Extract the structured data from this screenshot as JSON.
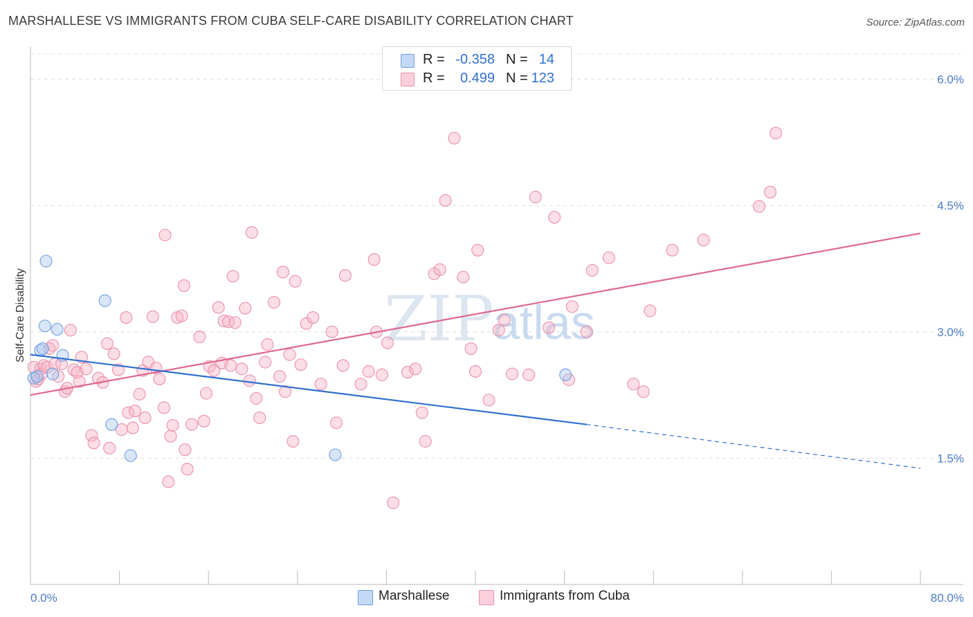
{
  "header": {
    "title": "MARSHALLESE VS IMMIGRANTS FROM CUBA SELF-CARE DISABILITY CORRELATION CHART",
    "source": "Source: ZipAtlas.com"
  },
  "watermark": {
    "zip": "ZIP",
    "atlas": "atlas"
  },
  "legend": {
    "rows": [
      {
        "r_label": "R =",
        "r_value": "-0.358",
        "n_label": "N =",
        "n_value": "14",
        "color": "#aac8f0"
      },
      {
        "r_label": "R =",
        "r_value": "0.499",
        "n_label": "N =",
        "n_value": "123",
        "color": "#f7b6c8"
      }
    ]
  },
  "bottom_legend": {
    "items": [
      {
        "label": "Marshallese",
        "color": "#aac8f0"
      },
      {
        "label": "Immigrants from Cuba",
        "color": "#f7b6c8"
      }
    ]
  },
  "chart_data": {
    "type": "scatter",
    "title": "MARSHALLESE VS IMMIGRANTS FROM CUBA SELF-CARE DISABILITY CORRELATION CHART",
    "xlabel": "",
    "ylabel": "Self-Care Disability",
    "xlim": [
      0,
      80
    ],
    "ylim": [
      0,
      6.3
    ],
    "x_tick_labels": [
      "0.0%",
      "80.0%"
    ],
    "y_ticks": [
      1.5,
      3.0,
      4.5,
      6.0
    ],
    "y_tick_labels": [
      "1.5%",
      "3.0%",
      "4.5%",
      "6.0%"
    ],
    "grid": true,
    "legend_position": "top-center",
    "series": [
      {
        "name": "Marshallese",
        "color": "#6f9fe0",
        "fill": "#aac8f0",
        "trend": {
          "x0": 0,
          "y0": 2.73,
          "x1": 50,
          "y1": 1.9,
          "dash_to_x": 80,
          "dash_to_y": 1.38,
          "color": "#2f6fd0"
        },
        "points": [
          [
            0.3,
            2.45
          ],
          [
            0.6,
            2.47
          ],
          [
            0.9,
            2.78
          ],
          [
            1.1,
            2.8
          ],
          [
            1.3,
            3.07
          ],
          [
            1.4,
            3.84
          ],
          [
            2.0,
            2.5
          ],
          [
            2.4,
            3.03
          ],
          [
            2.9,
            2.72
          ],
          [
            6.7,
            3.37
          ],
          [
            7.3,
            1.9
          ],
          [
            9.0,
            1.53
          ],
          [
            27.4,
            1.54
          ],
          [
            48.1,
            2.49
          ]
        ]
      },
      {
        "name": "Immigrants from Cuba",
        "color": "#e890aa",
        "fill": "#f7b6c8",
        "trend": {
          "x0": 0,
          "y0": 2.25,
          "x1": 80,
          "y1": 4.17,
          "color": "#e06690"
        },
        "points": [
          [
            0.3,
            2.58
          ],
          [
            0.5,
            2.41
          ],
          [
            0.7,
            2.44
          ],
          [
            0.9,
            2.56
          ],
          [
            1.0,
            2.5
          ],
          [
            1.2,
            2.6
          ],
          [
            1.5,
            2.58
          ],
          [
            1.7,
            2.8
          ],
          [
            2.0,
            2.84
          ],
          [
            2.2,
            2.62
          ],
          [
            2.5,
            2.47
          ],
          [
            2.8,
            2.62
          ],
          [
            3.1,
            2.29
          ],
          [
            3.3,
            2.33
          ],
          [
            3.6,
            3.02
          ],
          [
            3.9,
            2.55
          ],
          [
            4.2,
            2.52
          ],
          [
            4.4,
            2.41
          ],
          [
            4.6,
            2.7
          ],
          [
            5.0,
            2.56
          ],
          [
            5.5,
            1.77
          ],
          [
            5.7,
            1.68
          ],
          [
            6.1,
            2.45
          ],
          [
            6.5,
            2.4
          ],
          [
            6.9,
            2.86
          ],
          [
            7.1,
            1.62
          ],
          [
            7.5,
            2.74
          ],
          [
            7.9,
            2.55
          ],
          [
            8.2,
            1.84
          ],
          [
            8.6,
            3.17
          ],
          [
            8.8,
            2.04
          ],
          [
            9.2,
            1.86
          ],
          [
            9.4,
            2.06
          ],
          [
            9.8,
            2.26
          ],
          [
            10.1,
            2.54
          ],
          [
            10.3,
            1.98
          ],
          [
            10.6,
            2.64
          ],
          [
            11.0,
            3.18
          ],
          [
            11.3,
            2.57
          ],
          [
            11.6,
            2.44
          ],
          [
            12.0,
            2.1
          ],
          [
            12.1,
            4.15
          ],
          [
            12.4,
            1.22
          ],
          [
            12.6,
            1.76
          ],
          [
            12.8,
            1.89
          ],
          [
            13.2,
            3.17
          ],
          [
            13.6,
            3.19
          ],
          [
            13.8,
            3.55
          ],
          [
            13.9,
            1.6
          ],
          [
            14.1,
            1.37
          ],
          [
            14.5,
            1.9
          ],
          [
            15.2,
            2.94
          ],
          [
            15.6,
            1.94
          ],
          [
            15.8,
            2.27
          ],
          [
            16.1,
            2.59
          ],
          [
            16.5,
            2.54
          ],
          [
            16.9,
            3.29
          ],
          [
            17.2,
            2.63
          ],
          [
            17.4,
            3.13
          ],
          [
            17.8,
            3.12
          ],
          [
            18.0,
            2.6
          ],
          [
            18.2,
            3.66
          ],
          [
            18.4,
            3.11
          ],
          [
            19.0,
            2.56
          ],
          [
            19.3,
            3.28
          ],
          [
            19.7,
            2.42
          ],
          [
            19.9,
            4.18
          ],
          [
            20.3,
            2.21
          ],
          [
            20.6,
            1.98
          ],
          [
            21.1,
            2.64
          ],
          [
            21.3,
            2.85
          ],
          [
            21.9,
            3.35
          ],
          [
            22.4,
            2.47
          ],
          [
            22.7,
            3.71
          ],
          [
            22.9,
            2.29
          ],
          [
            23.3,
            2.73
          ],
          [
            23.6,
            1.7
          ],
          [
            23.8,
            3.6
          ],
          [
            24.3,
            2.61
          ],
          [
            24.8,
            3.1
          ],
          [
            25.4,
            3.17
          ],
          [
            26.1,
            2.38
          ],
          [
            27.1,
            3.0
          ],
          [
            27.5,
            1.92
          ],
          [
            28.1,
            2.6
          ],
          [
            28.3,
            3.67
          ],
          [
            29.7,
            2.38
          ],
          [
            30.4,
            2.53
          ],
          [
            30.9,
            3.86
          ],
          [
            31.1,
            3.0
          ],
          [
            31.6,
            2.49
          ],
          [
            32.1,
            2.87
          ],
          [
            32.6,
            0.97
          ],
          [
            33.9,
            2.52
          ],
          [
            34.6,
            2.56
          ],
          [
            35.2,
            2.04
          ],
          [
            35.5,
            1.7
          ],
          [
            36.3,
            3.69
          ],
          [
            36.8,
            3.74
          ],
          [
            37.3,
            4.56
          ],
          [
            38.1,
            5.3
          ],
          [
            38.9,
            3.65
          ],
          [
            39.6,
            2.8
          ],
          [
            40.0,
            2.53
          ],
          [
            40.2,
            3.97
          ],
          [
            41.2,
            2.19
          ],
          [
            42.1,
            3.02
          ],
          [
            42.6,
            3.14
          ],
          [
            43.3,
            2.5
          ],
          [
            44.8,
            2.49
          ],
          [
            45.4,
            4.6
          ],
          [
            46.6,
            3.05
          ],
          [
            47.1,
            4.36
          ],
          [
            48.4,
            2.43
          ],
          [
            48.7,
            3.3
          ],
          [
            50.0,
            3.0
          ],
          [
            50.5,
            3.73
          ],
          [
            52.0,
            3.88
          ],
          [
            54.2,
            2.38
          ],
          [
            55.1,
            2.29
          ],
          [
            55.7,
            3.25
          ],
          [
            57.7,
            3.97
          ],
          [
            60.5,
            4.09
          ],
          [
            65.5,
            4.49
          ],
          [
            66.5,
            4.66
          ],
          [
            67.0,
            5.36
          ]
        ]
      }
    ]
  }
}
